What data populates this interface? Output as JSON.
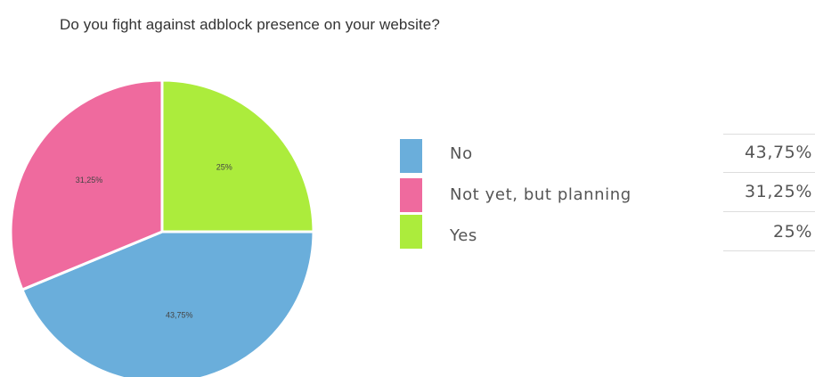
{
  "chart_data": {
    "type": "pie",
    "title": "Do you fight against adblock presence on your website?",
    "slices": [
      {
        "label": "No",
        "value": 43.75,
        "value_label": "43,75%",
        "pie_label": "43,75%",
        "color": "#6aaedb"
      },
      {
        "label": "Not yet, but planning",
        "value": 31.25,
        "value_label": "31,25%",
        "pie_label": "31,25%",
        "color": "#ef6a9e"
      },
      {
        "label": "Yes",
        "value": 25,
        "value_label": "25%",
        "pie_label": "25%",
        "color": "#acec3c"
      }
    ],
    "legend_position": "right"
  }
}
